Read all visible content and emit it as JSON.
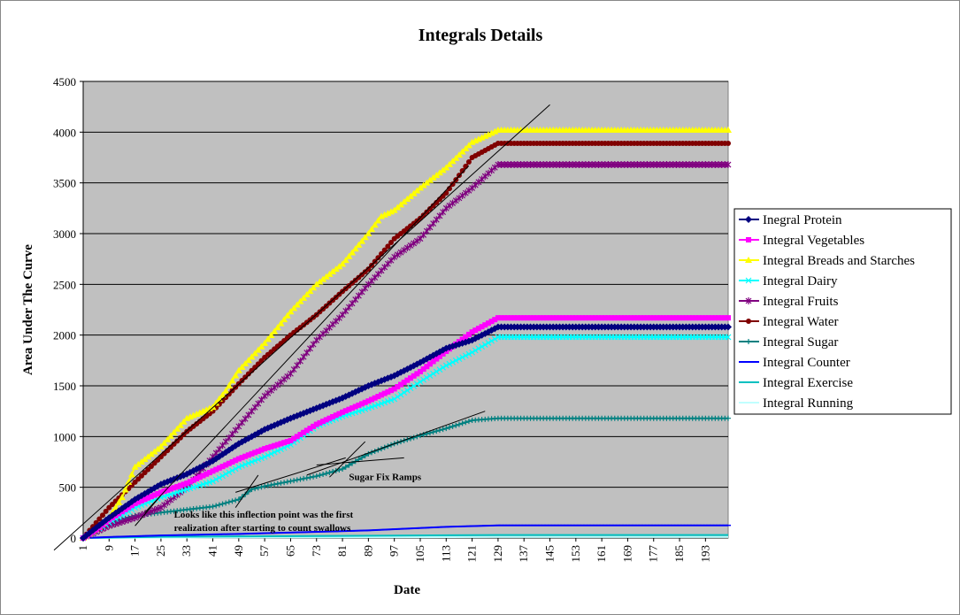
{
  "chart_data": {
    "type": "line",
    "title": "Integrals Details",
    "xlabel": "Date",
    "ylabel": "Area Under The Curve",
    "ylim": [
      0,
      4500
    ],
    "xlim": [
      1,
      200
    ],
    "yticks": [
      0,
      500,
      1000,
      1500,
      2000,
      2500,
      3000,
      3500,
      4000,
      4500
    ],
    "xticks": [
      1,
      9,
      17,
      25,
      33,
      41,
      49,
      57,
      65,
      73,
      81,
      89,
      97,
      105,
      113,
      121,
      129,
      137,
      145,
      153,
      161,
      169,
      177,
      185,
      193
    ],
    "grid": true,
    "legend_position": "right",
    "series": [
      {
        "name": "Inegral Protein",
        "color": "#000080",
        "marker": "diamond",
        "points": [
          [
            1,
            0
          ],
          [
            5,
            100
          ],
          [
            9,
            200
          ],
          [
            17,
            380
          ],
          [
            25,
            530
          ],
          [
            33,
            630
          ],
          [
            41,
            760
          ],
          [
            49,
            930
          ],
          [
            57,
            1070
          ],
          [
            65,
            1180
          ],
          [
            73,
            1280
          ],
          [
            81,
            1380
          ],
          [
            89,
            1500
          ],
          [
            97,
            1600
          ],
          [
            105,
            1730
          ],
          [
            113,
            1870
          ],
          [
            121,
            1950
          ],
          [
            129,
            2080
          ],
          [
            200,
            2080
          ]
        ]
      },
      {
        "name": "Integral Vegetables",
        "color": "#ff00ff",
        "marker": "square",
        "points": [
          [
            1,
            0
          ],
          [
            5,
            80
          ],
          [
            9,
            180
          ],
          [
            17,
            340
          ],
          [
            25,
            450
          ],
          [
            33,
            540
          ],
          [
            41,
            660
          ],
          [
            49,
            780
          ],
          [
            57,
            880
          ],
          [
            65,
            960
          ],
          [
            73,
            1120
          ],
          [
            81,
            1240
          ],
          [
            89,
            1350
          ],
          [
            97,
            1470
          ],
          [
            105,
            1640
          ],
          [
            113,
            1840
          ],
          [
            121,
            2030
          ],
          [
            129,
            2170
          ],
          [
            200,
            2170
          ]
        ]
      },
      {
        "name": "Integral Breads and Starches",
        "color": "#ffff00",
        "marker": "triangle",
        "points": [
          [
            1,
            0
          ],
          [
            5,
            80
          ],
          [
            9,
            200
          ],
          [
            13,
            400
          ],
          [
            17,
            700
          ],
          [
            25,
            900
          ],
          [
            33,
            1180
          ],
          [
            41,
            1290
          ],
          [
            45,
            1450
          ],
          [
            49,
            1650
          ],
          [
            57,
            1920
          ],
          [
            65,
            2230
          ],
          [
            73,
            2500
          ],
          [
            81,
            2700
          ],
          [
            89,
            3000
          ],
          [
            93,
            3170
          ],
          [
            97,
            3230
          ],
          [
            105,
            3450
          ],
          [
            113,
            3650
          ],
          [
            121,
            3900
          ],
          [
            129,
            4020
          ],
          [
            200,
            4020
          ]
        ]
      },
      {
        "name": "Integral Dairy",
        "color": "#00ffff",
        "marker": "x",
        "points": [
          [
            1,
            0
          ],
          [
            9,
            150
          ],
          [
            17,
            300
          ],
          [
            25,
            400
          ],
          [
            33,
            480
          ],
          [
            41,
            560
          ],
          [
            49,
            700
          ],
          [
            57,
            800
          ],
          [
            65,
            920
          ],
          [
            73,
            1100
          ],
          [
            81,
            1200
          ],
          [
            89,
            1280
          ],
          [
            97,
            1370
          ],
          [
            105,
            1540
          ],
          [
            113,
            1700
          ],
          [
            121,
            1830
          ],
          [
            129,
            1980
          ],
          [
            200,
            1980
          ]
        ]
      },
      {
        "name": "Integral Fruits",
        "color": "#800080",
        "marker": "star",
        "points": [
          [
            1,
            0
          ],
          [
            9,
            120
          ],
          [
            17,
            200
          ],
          [
            25,
            300
          ],
          [
            33,
            500
          ],
          [
            41,
            800
          ],
          [
            49,
            1100
          ],
          [
            57,
            1400
          ],
          [
            65,
            1620
          ],
          [
            73,
            1950
          ],
          [
            81,
            2200
          ],
          [
            89,
            2500
          ],
          [
            97,
            2770
          ],
          [
            105,
            2950
          ],
          [
            113,
            3250
          ],
          [
            121,
            3450
          ],
          [
            129,
            3680
          ],
          [
            200,
            3680
          ]
        ]
      },
      {
        "name": "Integral Water",
        "color": "#800000",
        "marker": "circle",
        "points": [
          [
            1,
            0
          ],
          [
            5,
            150
          ],
          [
            9,
            300
          ],
          [
            17,
            550
          ],
          [
            25,
            800
          ],
          [
            33,
            1050
          ],
          [
            41,
            1250
          ],
          [
            49,
            1520
          ],
          [
            57,
            1780
          ],
          [
            65,
            2000
          ],
          [
            73,
            2200
          ],
          [
            81,
            2430
          ],
          [
            89,
            2650
          ],
          [
            97,
            2950
          ],
          [
            105,
            3150
          ],
          [
            113,
            3400
          ],
          [
            121,
            3750
          ],
          [
            129,
            3890
          ],
          [
            200,
            3890
          ]
        ]
      },
      {
        "name": "Integral Sugar",
        "color": "#008080",
        "marker": "plus",
        "points": [
          [
            1,
            0
          ],
          [
            9,
            150
          ],
          [
            17,
            220
          ],
          [
            25,
            250
          ],
          [
            33,
            280
          ],
          [
            41,
            310
          ],
          [
            49,
            380
          ],
          [
            53,
            480
          ],
          [
            57,
            510
          ],
          [
            65,
            560
          ],
          [
            73,
            610
          ],
          [
            81,
            680
          ],
          [
            89,
            830
          ],
          [
            97,
            930
          ],
          [
            105,
            1010
          ],
          [
            113,
            1080
          ],
          [
            121,
            1160
          ],
          [
            129,
            1180
          ],
          [
            200,
            1180
          ]
        ]
      },
      {
        "name": "Integral Counter",
        "color": "#0000ff",
        "marker": "dash",
        "points": [
          [
            1,
            0
          ],
          [
            9,
            10
          ],
          [
            25,
            25
          ],
          [
            49,
            40
          ],
          [
            89,
            75
          ],
          [
            113,
            110
          ],
          [
            129,
            125
          ],
          [
            200,
            125
          ]
        ]
      },
      {
        "name": "Integral Exercise",
        "color": "#00c0c0",
        "marker": "none",
        "points": [
          [
            1,
            0
          ],
          [
            25,
            12
          ],
          [
            73,
            20
          ],
          [
            129,
            30
          ],
          [
            200,
            30
          ]
        ]
      },
      {
        "name": "Integral Running",
        "color": "#c0ffff",
        "marker": "none",
        "points": [
          [
            1,
            0
          ],
          [
            41,
            5
          ],
          [
            129,
            10
          ],
          [
            200,
            10
          ]
        ]
      }
    ],
    "trendlines": [
      [
        [
          -8,
          -120
        ],
        [
          145,
          4270
        ]
      ],
      [
        [
          20,
          250
        ],
        [
          120,
          3670
        ]
      ],
      [
        [
          70,
          620
        ],
        [
          125,
          1250
        ]
      ],
      [
        [
          48,
          450
        ],
        [
          82,
          790
        ]
      ],
      [
        [
          73,
          720
        ],
        [
          100,
          790
        ]
      ],
      [
        [
          48,
          300
        ],
        [
          55,
          620
        ]
      ],
      [
        [
          77,
          600
        ],
        [
          88,
          950
        ]
      ],
      [
        [
          17,
          120
        ],
        [
          25,
          420
        ]
      ]
    ],
    "annotations": [
      {
        "text": "Sugar Fix Ramps",
        "x": 83,
        "y": 570
      },
      {
        "text": "Looks like this inflection point was the first",
        "x": 29,
        "y": 200
      },
      {
        "text": "realization after starting to count swallows",
        "x": 29,
        "y": 70
      }
    ]
  }
}
